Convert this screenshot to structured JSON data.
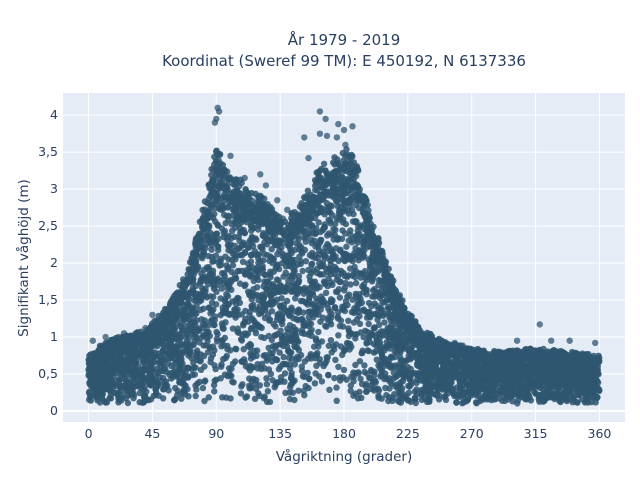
{
  "chart_data": {
    "type": "scatter",
    "title_line1": "År 1979 - 2019",
    "title_line2": "Koordinat (Sweref 99 TM): E 450192, N 6137336",
    "xlabel": "Vågriktning (grader)",
    "ylabel": "Signifikant våghöjd (m)",
    "xlim": [
      -18,
      378
    ],
    "ylim": [
      -0.15,
      4.3
    ],
    "x_ticks": [
      0,
      45,
      90,
      135,
      180,
      225,
      270,
      315,
      360
    ],
    "x_tick_labels": [
      "0",
      "45",
      "90",
      "135",
      "180",
      "225",
      "270",
      "315",
      "360"
    ],
    "y_ticks": [
      0,
      0.5,
      1,
      1.5,
      2,
      2.5,
      3,
      3.5,
      4
    ],
    "y_tick_labels": [
      "0",
      "0,5",
      "1",
      "1,5",
      "2",
      "2,5",
      "3",
      "3,5",
      "4"
    ],
    "grid": true,
    "colors": {
      "marker": "#2f5670",
      "plot_bg": "#e5ecf6",
      "grid": "#ffffff",
      "text": "#2a3f5f"
    },
    "envelope": [
      [
        0,
        0.75
      ],
      [
        10,
        0.9
      ],
      [
        20,
        1.0
      ],
      [
        30,
        1.05
      ],
      [
        40,
        1.1
      ],
      [
        50,
        1.3
      ],
      [
        60,
        1.55
      ],
      [
        70,
        1.9
      ],
      [
        80,
        2.7
      ],
      [
        88,
        3.45
      ],
      [
        92,
        3.6
      ],
      [
        95,
        3.3
      ],
      [
        100,
        3.2
      ],
      [
        110,
        3.1
      ],
      [
        120,
        2.95
      ],
      [
        130,
        2.75
      ],
      [
        140,
        2.6
      ],
      [
        150,
        2.85
      ],
      [
        158,
        3.15
      ],
      [
        165,
        3.35
      ],
      [
        175,
        3.45
      ],
      [
        182,
        3.55
      ],
      [
        188,
        3.4
      ],
      [
        195,
        2.9
      ],
      [
        205,
        2.3
      ],
      [
        215,
        1.75
      ],
      [
        225,
        1.35
      ],
      [
        235,
        1.1
      ],
      [
        250,
        0.95
      ],
      [
        270,
        0.85
      ],
      [
        290,
        0.8
      ],
      [
        315,
        0.85
      ],
      [
        340,
        0.8
      ],
      [
        360,
        0.75
      ]
    ],
    "outliers": [
      [
        91,
        4.1
      ],
      [
        92,
        4.05
      ],
      [
        90,
        3.95
      ],
      [
        89,
        3.9
      ],
      [
        163,
        4.05
      ],
      [
        167,
        3.95
      ],
      [
        176,
        3.88
      ],
      [
        180,
        3.8
      ],
      [
        163,
        3.75
      ],
      [
        175,
        3.7
      ],
      [
        168,
        3.72
      ],
      [
        152,
        3.7
      ],
      [
        100,
        3.45
      ],
      [
        121,
        3.2
      ],
      [
        96,
        3.25
      ],
      [
        181,
        3.6
      ],
      [
        186,
        3.85
      ],
      [
        155,
        3.42
      ],
      [
        318,
        1.17
      ],
      [
        258,
        0.92
      ],
      [
        264,
        0.85
      ],
      [
        302,
        0.95
      ],
      [
        326,
        0.95
      ],
      [
        339,
        0.95
      ],
      [
        357,
        0.92
      ],
      [
        229,
        1.05
      ],
      [
        235,
        0.95
      ],
      [
        210,
        1.6
      ],
      [
        203,
        2.0
      ],
      [
        65,
        1.55
      ],
      [
        55,
        1.35
      ],
      [
        45,
        1.3
      ],
      [
        40,
        1.12
      ],
      [
        25,
        1.05
      ],
      [
        12,
        1.0
      ],
      [
        3,
        0.95
      ],
      [
        8,
        0.88
      ],
      [
        215,
        1.55
      ],
      [
        222,
        1.3
      ],
      [
        140,
        2.72
      ],
      [
        133,
        2.85
      ],
      [
        125,
        3.05
      ],
      [
        110,
        3.15
      ],
      [
        137,
        2.6
      ]
    ]
  }
}
